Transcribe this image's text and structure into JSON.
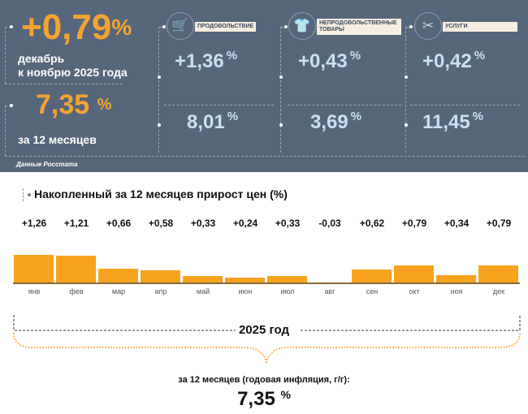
{
  "summary": {
    "monthly_value": "+0,79",
    "monthly_unit": "%",
    "monthly_caption_1": "декабрь",
    "monthly_caption_2": "к ноябрю 2025 года",
    "annual_value": "7,35",
    "annual_unit": "%",
    "annual_caption": "за 12 месяцев",
    "source": "Данные Росстата"
  },
  "categories": [
    {
      "icon": "shopping-cart-icon",
      "label": "ПРОДОВОЛЬСТВИЕ",
      "monthly": "+1,36",
      "annual": "8,01"
    },
    {
      "icon": "clothing-icon",
      "label": "НЕПРОДОВОЛЬСТВЕННЫЕ ТОВАРЫ",
      "monthly": "+0,43",
      "annual": "3,69"
    },
    {
      "icon": "scissors-icon",
      "label": "УСЛУГИ",
      "monthly": "+0,42",
      "annual": "11,45"
    }
  ],
  "unit": "%",
  "chart_data": {
    "type": "bar",
    "title": "Накопленный за 12 месяцев прирост цен (%)",
    "categories": [
      "янв",
      "фев",
      "мар",
      "апр",
      "май",
      "июн",
      "июл",
      "авг",
      "сен",
      "окт",
      "ноя",
      "дек"
    ],
    "values": [
      1.26,
      1.21,
      0.66,
      0.58,
      0.33,
      0.24,
      0.33,
      -0.03,
      0.62,
      0.79,
      0.34,
      0.79
    ],
    "labels": [
      "+1,26",
      "+1,21",
      "+0,66",
      "+0,58",
      "+0,33",
      "+0,24",
      "+0,33",
      "-0,03",
      "+0,62",
      "+0,79",
      "+0,34",
      "+0,79"
    ],
    "bar_color": "#f8a31f"
  },
  "footer": {
    "year_label": "2025 год",
    "annual_caption": "за 12 месяцев (годовая инфляция, г/г):",
    "annual_value": "7,35",
    "annual_unit": "%"
  }
}
